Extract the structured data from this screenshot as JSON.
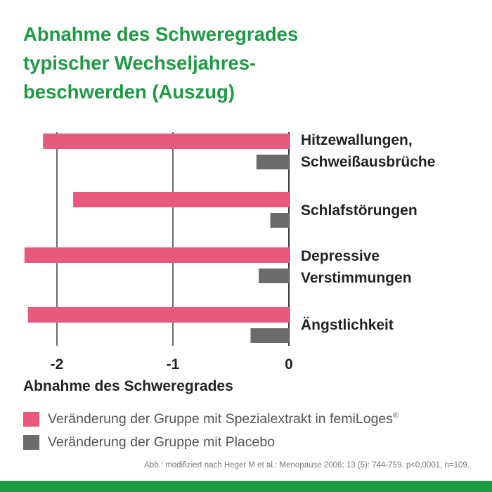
{
  "title_lines": [
    "Abnahme des Schweregrades",
    "typischer Wechseljahres-",
    "beschwerden (Auszug)"
  ],
  "legend": {
    "spezial_prefix": "Veränderung der Gruppe mit Spezialextrakt in femiLoges",
    "spezial_mark": "®",
    "placebo": "Veränderung der Gruppe mit Placebo"
  },
  "source": "Abb.: modifiziert nach Heger M et al.: Menopause 2006; 13 (5): 744-759. p<0,0001, n=109.",
  "colors": {
    "title": "#1e9a43",
    "spezialextrakt": "#e75a7c",
    "placebo": "#6b6b6b",
    "footer": "#1e9a43"
  },
  "chart_data": {
    "type": "bar",
    "orientation": "horizontal",
    "xlabel": "Abnahme des Schweregrades",
    "xlim": [
      -2.2,
      0
    ],
    "xticks": [
      -2,
      -1,
      0
    ],
    "xtick_labels": [
      "-2",
      "-1",
      "0"
    ],
    "grid": "vertical lines at ticks",
    "categories": [
      [
        "Hitzewallungen,",
        "Schweißausbrüche"
      ],
      [
        "Schlafstörungen"
      ],
      [
        "Depressive",
        "Verstimmungen"
      ],
      [
        "Ängstlichkeit"
      ]
    ],
    "series": [
      {
        "name": "Veränderung der Gruppe mit Spezialextrakt in femiLoges®",
        "values": [
          -2.12,
          -1.86,
          -2.28,
          -2.25
        ]
      },
      {
        "name": "Veränderung der Gruppe mit Placebo",
        "values": [
          -0.28,
          -0.16,
          -0.26,
          -0.33
        ]
      }
    ]
  }
}
